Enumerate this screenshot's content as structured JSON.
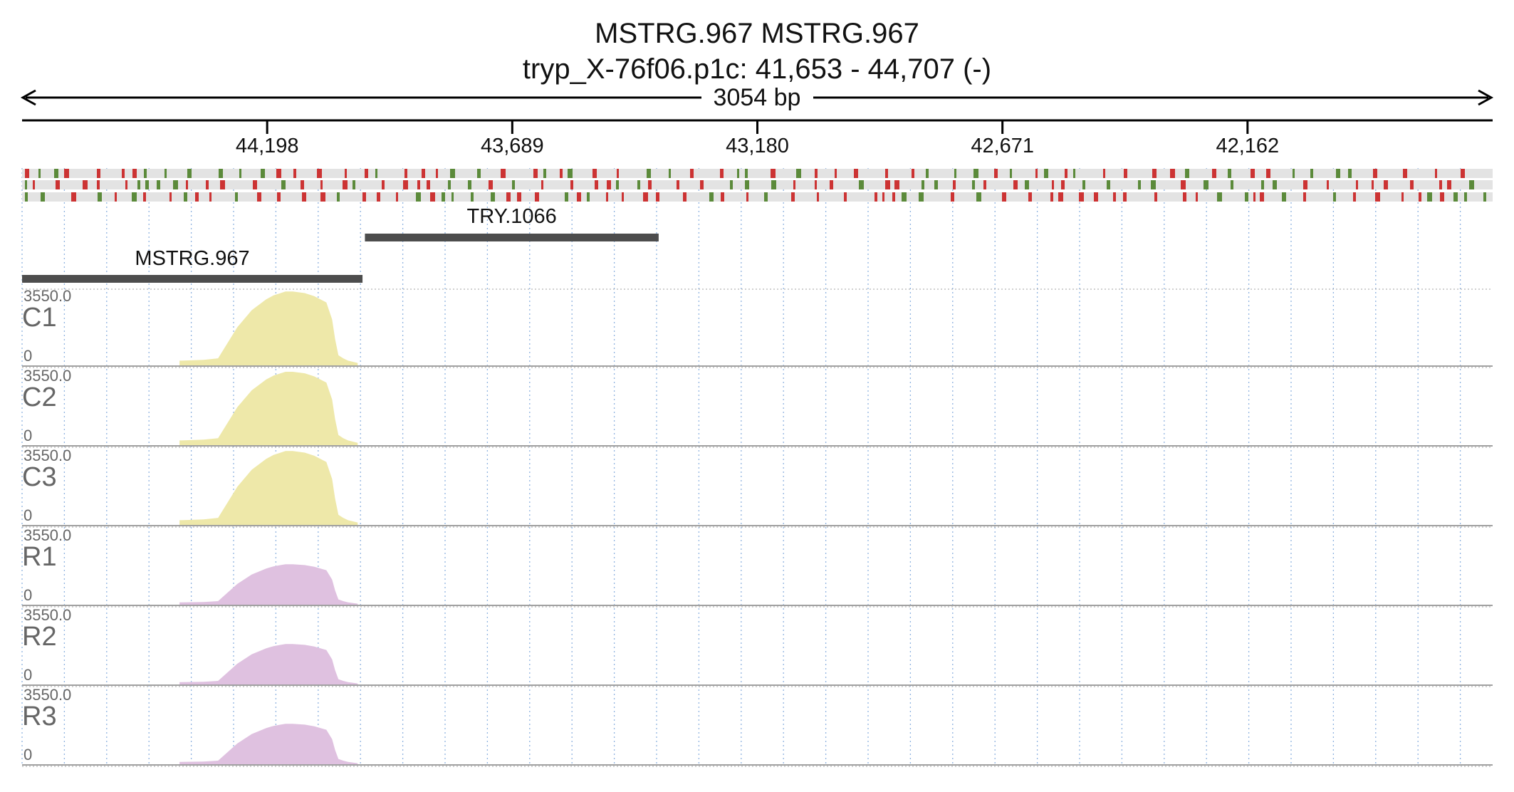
{
  "header": {
    "title_line1": "MSTRG.967  MSTRG.967",
    "title_line2": "tryp_X-76f06.p1c: 41,653 - 44,707 (-)",
    "span_label": "3054 bp"
  },
  "colors": {
    "ruler": "#000000",
    "grid": "#8fb3e0",
    "track_bg": "#e3e3e3",
    "track_red": "#cc3333",
    "track_green": "#5b8a3a",
    "feature": "#4d4d4d",
    "cov_c": "#eee8a9",
    "cov_r": "#dfc1e0",
    "divider": "#a0a0a0",
    "track_label": "#666666"
  },
  "chart_data": {
    "type": "area",
    "title": "MSTRG.967  MSTRG.967",
    "region": {
      "chrom": "tryp_X-76f06.p1c",
      "start": 41653,
      "end": 44707,
      "strand": "-",
      "length_bp": 3054
    },
    "axis": {
      "ticks": [
        {
          "pos": 44198,
          "label": "44,198"
        },
        {
          "pos": 43689,
          "label": "43,689"
        },
        {
          "pos": 43180,
          "label": "43,180"
        },
        {
          "pos": 42671,
          "label": "42,671"
        },
        {
          "pos": 42162,
          "label": "42,162"
        }
      ],
      "direction": "reversed"
    },
    "features": [
      {
        "name": "MSTRG.967",
        "start": 44000,
        "end": 44707
      },
      {
        "name": "TRY.1066",
        "start": 43385,
        "end": 43995
      }
    ],
    "coverage_profile": {
      "x": [
        44380,
        44330,
        44300,
        44260,
        44230,
        44200,
        44185,
        44170,
        44160,
        44145,
        44120,
        44100,
        44075,
        44063,
        44057,
        44050,
        44040,
        44030,
        44010
      ],
      "frac": [
        0.07,
        0.08,
        0.1,
        0.5,
        0.72,
        0.86,
        0.91,
        0.94,
        0.96,
        0.96,
        0.94,
        0.9,
        0.82,
        0.6,
        0.35,
        0.14,
        0.1,
        0.07,
        0.04
      ]
    },
    "tracks": [
      {
        "name": "C1",
        "max_label": "3550.0",
        "min_label": "0",
        "ymax": 3550,
        "peak": 3440,
        "color": "#eee8a9"
      },
      {
        "name": "C2",
        "max_label": "3550.0",
        "min_label": "0",
        "ymax": 3550,
        "peak": 3420,
        "color": "#eee8a9"
      },
      {
        "name": "C3",
        "max_label": "3550.0",
        "min_label": "0",
        "ymax": 3550,
        "peak": 3440,
        "color": "#eee8a9"
      },
      {
        "name": "R1",
        "max_label": "3550.0",
        "min_label": "0",
        "ymax": 3550,
        "peak": 1900,
        "color": "#dfc1e0"
      },
      {
        "name": "R2",
        "max_label": "3550.0",
        "min_label": "0",
        "ymax": 3550,
        "peak": 1900,
        "color": "#dfc1e0"
      },
      {
        "name": "R3",
        "max_label": "3550.0",
        "min_label": "0",
        "ymax": 3550,
        "peak": 1900,
        "color": "#dfc1e0"
      }
    ]
  }
}
